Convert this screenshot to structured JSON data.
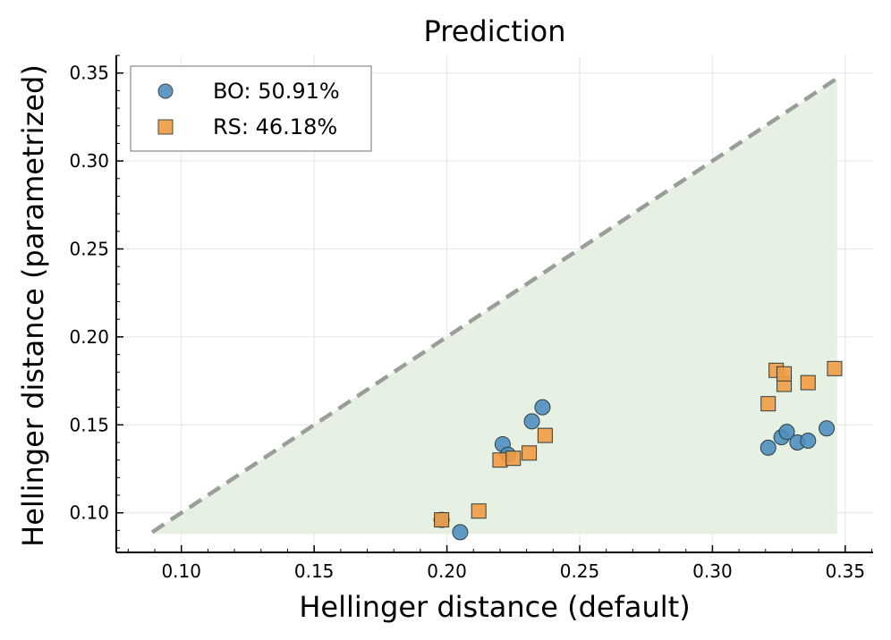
{
  "chart_data": {
    "type": "scatter",
    "title": "Prediction",
    "xlabel": "Hellinger distance (default)",
    "ylabel": "Hellinger distance (parametrized)",
    "xlim": [
      0.0755,
      0.3605
    ],
    "ylim": [
      0.0775,
      0.36
    ],
    "xticks": [
      0.1,
      0.15,
      0.2,
      0.25,
      0.3,
      0.35
    ],
    "xtick_labels": [
      "0.10",
      "0.15",
      "0.20",
      "0.25",
      "0.30",
      "0.35"
    ],
    "yticks": [
      0.1,
      0.15,
      0.2,
      0.25,
      0.3,
      0.35
    ],
    "ytick_labels": [
      "0.10",
      "0.15",
      "0.20",
      "0.25",
      "0.30",
      "0.35"
    ],
    "grid": true,
    "legend_position": "top-left",
    "reference_line": {
      "label": "y = x",
      "from": 0.089,
      "to": 0.347,
      "color": "#9a9e99",
      "style": "dashed"
    },
    "shaded_region": {
      "x_from": 0.089,
      "x_to": 0.347,
      "y_floor": 0.088,
      "color": "#e3efe1"
    },
    "series": [
      {
        "name": "BO: 50.91%",
        "marker": "circle",
        "color": "#4f8fc0",
        "points": [
          [
            0.198,
            0.096
          ],
          [
            0.205,
            0.089
          ],
          [
            0.221,
            0.139
          ],
          [
            0.223,
            0.133
          ],
          [
            0.232,
            0.152
          ],
          [
            0.236,
            0.16
          ],
          [
            0.321,
            0.137
          ],
          [
            0.326,
            0.143
          ],
          [
            0.328,
            0.146
          ],
          [
            0.332,
            0.14
          ],
          [
            0.336,
            0.141
          ],
          [
            0.343,
            0.148
          ]
        ]
      },
      {
        "name": "RS: 46.18%",
        "marker": "square",
        "color": "#f09c42",
        "points": [
          [
            0.198,
            0.096
          ],
          [
            0.212,
            0.101
          ],
          [
            0.22,
            0.13
          ],
          [
            0.225,
            0.131
          ],
          [
            0.231,
            0.134
          ],
          [
            0.237,
            0.144
          ],
          [
            0.321,
            0.162
          ],
          [
            0.324,
            0.181
          ],
          [
            0.327,
            0.173
          ],
          [
            0.327,
            0.179
          ],
          [
            0.336,
            0.174
          ],
          [
            0.346,
            0.182
          ]
        ]
      }
    ]
  }
}
